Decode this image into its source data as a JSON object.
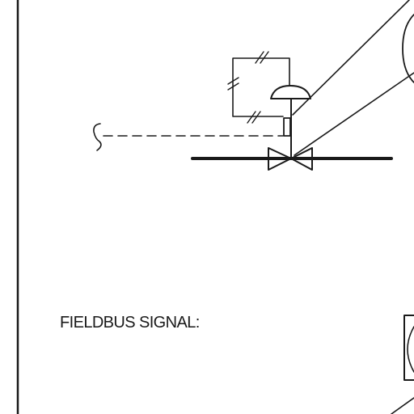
{
  "legend": {
    "fieldbus_label": "FIELDBUS SIGNAL:"
  },
  "colors": {
    "ink": "#1a1a1a",
    "paper": "#ffffff"
  }
}
